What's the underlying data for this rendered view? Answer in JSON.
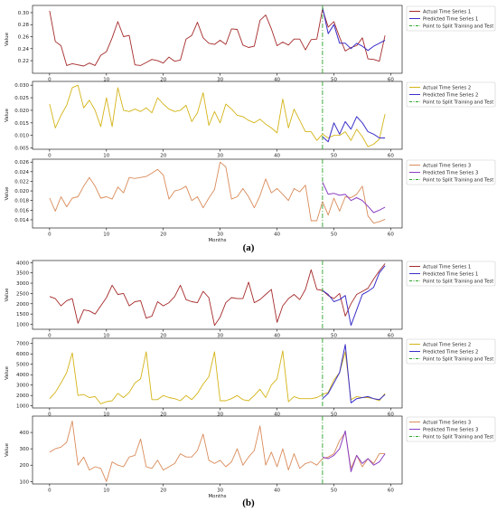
{
  "panels": [
    {
      "label": "(a)"
    },
    {
      "label": "(b)"
    }
  ],
  "chart_data": [
    {
      "type": "line",
      "group": "a",
      "ylabel": "Value",
      "xlabel": "",
      "xlim": [
        -3,
        62
      ],
      "ylim": [
        0.199,
        0.312
      ],
      "yticks": [
        0.22,
        0.24,
        0.26,
        0.28,
        0.3
      ],
      "ytick_labels": [
        "0.22",
        "0.24",
        "0.26",
        "0.28",
        "0.30"
      ],
      "xticks": [
        0,
        10,
        20,
        30,
        40,
        50,
        60
      ],
      "split": 48,
      "legend_position": "outside-right",
      "series": [
        {
          "name": "Actual Time Series 1",
          "color": "#a52a2a",
          "style": "solid",
          "x_start": 0,
          "values": [
            0.303,
            0.252,
            0.245,
            0.212,
            0.215,
            0.213,
            0.211,
            0.216,
            0.212,
            0.229,
            0.235,
            0.258,
            0.285,
            0.26,
            0.262,
            0.213,
            0.212,
            0.217,
            0.222,
            0.22,
            0.216,
            0.226,
            0.219,
            0.221,
            0.256,
            0.262,
            0.284,
            0.258,
            0.249,
            0.247,
            0.254,
            0.247,
            0.273,
            0.272,
            0.246,
            0.242,
            0.244,
            0.287,
            0.296,
            0.273,
            0.245,
            0.251,
            0.246,
            0.256,
            0.256,
            0.238,
            0.255,
            0.256,
            0.306,
            0.276,
            0.285,
            0.259,
            0.236,
            0.242,
            0.245,
            0.258,
            0.223,
            0.222,
            0.219,
            0.262
          ]
        },
        {
          "name": "Predicted Time Series 1",
          "color": "#3a2fc8",
          "style": "solid",
          "x_start": 48,
          "values": [
            0.309,
            0.265,
            0.28,
            0.249,
            0.249,
            0.24,
            0.249,
            0.244,
            0.237,
            0.244,
            0.249,
            0.254
          ]
        },
        {
          "name": "Point to Split Training and Test",
          "color": "#2ca02c",
          "style": "dashdot"
        }
      ]
    },
    {
      "type": "line",
      "group": "a",
      "ylabel": "Value",
      "xlabel": "",
      "xlim": [
        -3,
        62
      ],
      "ylim": [
        0.0045,
        0.0315
      ],
      "yticks": [
        0.005,
        0.01,
        0.015,
        0.02,
        0.025,
        0.03
      ],
      "ytick_labels": [
        "0.005",
        "0.010",
        "0.015",
        "0.020",
        "0.025",
        "0.030"
      ],
      "xticks": [
        0,
        10,
        20,
        30,
        40,
        50,
        60
      ],
      "split": 48,
      "legend_position": "outside-right",
      "series": [
        {
          "name": "Actual Time Series 2",
          "color": "#d4b417",
          "style": "solid",
          "x_start": 0,
          "values": [
            0.0225,
            0.013,
            0.018,
            0.022,
            0.029,
            0.03,
            0.021,
            0.024,
            0.02,
            0.0135,
            0.025,
            0.0135,
            0.029,
            0.02,
            0.0195,
            0.0205,
            0.0195,
            0.021,
            0.019,
            0.025,
            0.0225,
            0.0205,
            0.0195,
            0.02,
            0.022,
            0.0155,
            0.019,
            0.027,
            0.014,
            0.0195,
            0.015,
            0.0225,
            0.0205,
            0.018,
            0.0175,
            0.016,
            0.015,
            0.0165,
            0.0145,
            0.013,
            0.011,
            0.0245,
            0.013,
            0.0205,
            0.016,
            0.0115,
            0.0115,
            0.008,
            0.0105,
            0.009,
            0.01,
            0.01,
            0.0115,
            0.008,
            0.0125,
            0.0095,
            0.0055,
            0.0065,
            0.0085,
            0.0185
          ]
        },
        {
          "name": "Predicted Time Series 2",
          "color": "#3a2fc8",
          "style": "solid",
          "x_start": 48,
          "values": [
            0.0095,
            0.0075,
            0.015,
            0.0105,
            0.0155,
            0.0125,
            0.0175,
            0.015,
            0.0115,
            0.0105,
            0.009,
            0.009
          ]
        },
        {
          "name": "Point to Split Training and Test",
          "color": "#2ca02c",
          "style": "dashdot"
        }
      ]
    },
    {
      "type": "line",
      "group": "a",
      "ylabel": "Value",
      "xlabel": "Months",
      "xlim": [
        -3,
        62
      ],
      "ylim": [
        0.0123,
        0.0266
      ],
      "yticks": [
        0.014,
        0.016,
        0.018,
        0.02,
        0.022,
        0.024,
        0.026
      ],
      "ytick_labels": [
        "0.014",
        "0.016",
        "0.018",
        "0.020",
        "0.022",
        "0.024",
        "0.026"
      ],
      "xticks": [
        0,
        10,
        20,
        30,
        40,
        50,
        60
      ],
      "split": 48,
      "legend_position": "outside-right",
      "series": [
        {
          "name": "Actual Time Series 3",
          "color": "#d98b5a",
          "style": "solid",
          "x_start": 0,
          "values": [
            0.0185,
            0.0158,
            0.0188,
            0.0167,
            0.0185,
            0.0188,
            0.021,
            0.0228,
            0.021,
            0.0185,
            0.0188,
            0.0183,
            0.0208,
            0.0196,
            0.0228,
            0.0226,
            0.0228,
            0.023,
            0.0237,
            0.0245,
            0.0233,
            0.0183,
            0.02,
            0.0203,
            0.021,
            0.018,
            0.0188,
            0.0165,
            0.0185,
            0.0203,
            0.026,
            0.025,
            0.0183,
            0.0188,
            0.0205,
            0.0188,
            0.0165,
            0.019,
            0.0225,
            0.0196,
            0.0205,
            0.0193,
            0.018,
            0.0205,
            0.0198,
            0.0212,
            0.0138,
            0.0138,
            0.0178,
            0.015,
            0.0185,
            0.0158,
            0.0188,
            0.0186,
            0.0193,
            0.021,
            0.0148,
            0.0133,
            0.0136,
            0.0141
          ]
        },
        {
          "name": "Predicted Time Series 3",
          "color": "#8a3fc4",
          "style": "solid",
          "x_start": 48,
          "values": [
            0.0218,
            0.0193,
            0.0195,
            0.0191,
            0.0193,
            0.018,
            0.0186,
            0.018,
            0.0168,
            0.0155,
            0.016,
            0.0166
          ]
        },
        {
          "name": "Point to Split Training and Test",
          "color": "#2ca02c",
          "style": "dashdot"
        }
      ]
    },
    {
      "type": "line",
      "group": "b",
      "ylabel": "Value",
      "xlabel": "",
      "xlim": [
        -3,
        62
      ],
      "ylim": [
        760,
        4100
      ],
      "yticks": [
        1000,
        1500,
        2000,
        2500,
        3000,
        3500,
        4000
      ],
      "ytick_labels": [
        "1000",
        "1500",
        "2000",
        "2500",
        "3000",
        "3500",
        "4000"
      ],
      "xticks": [
        0,
        10,
        20,
        30,
        40,
        50,
        60
      ],
      "split": 48,
      "legend_position": "outside-right",
      "series": [
        {
          "name": "Actual Time Series 1",
          "color": "#a52a2a",
          "style": "solid",
          "x_start": 0,
          "values": [
            2350,
            2250,
            1900,
            2150,
            2250,
            1050,
            1700,
            1650,
            1500,
            1900,
            2300,
            2900,
            2450,
            2500,
            1900,
            2100,
            2150,
            1300,
            1400,
            2100,
            1900,
            2050,
            2350,
            2900,
            2200,
            2100,
            2050,
            2600,
            2300,
            950,
            1350,
            2050,
            2300,
            2250,
            2250,
            3050,
            2050,
            2200,
            2450,
            2700,
            1100,
            1900,
            2250,
            2450,
            2200,
            2700,
            3650,
            2700,
            2650,
            2400,
            2250,
            2500,
            1400,
            2000,
            2450,
            2600,
            2750,
            3200,
            3600,
            3950
          ]
        },
        {
          "name": "Predicted Time Series 1",
          "color": "#3a2fc8",
          "style": "solid",
          "x_start": 48,
          "values": [
            2650,
            2450,
            2100,
            2200,
            2400,
            950,
            1700,
            2450,
            2600,
            2800,
            3500,
            3850
          ]
        },
        {
          "name": "Point to Split Training and Test",
          "color": "#2ca02c",
          "style": "dashdot"
        }
      ]
    },
    {
      "type": "line",
      "group": "b",
      "ylabel": "Value",
      "xlabel": "",
      "xlim": [
        -3,
        62
      ],
      "ylim": [
        800,
        7500
      ],
      "yticks": [
        1000,
        2000,
        3000,
        4000,
        5000,
        6000,
        7000
      ],
      "ytick_labels": [
        "1000",
        "2000",
        "3000",
        "4000",
        "5000",
        "6000",
        "7000"
      ],
      "xticks": [
        0,
        10,
        20,
        30,
        40,
        50,
        60
      ],
      "split": 48,
      "legend_position": "outside-right",
      "series": [
        {
          "name": "Actual Time Series 2",
          "color": "#d4b417",
          "style": "solid",
          "x_start": 0,
          "values": [
            1700,
            2300,
            3200,
            4200,
            6100,
            2000,
            2100,
            1800,
            1900,
            1200,
            1400,
            1500,
            2200,
            1800,
            2300,
            3200,
            3600,
            6200,
            1600,
            1600,
            2000,
            1800,
            1700,
            1500,
            2000,
            1600,
            2200,
            3100,
            3800,
            6200,
            1500,
            1500,
            1700,
            2000,
            1600,
            1500,
            2000,
            2600,
            1800,
            3000,
            3600,
            6300,
            1400,
            1900,
            1700,
            1700,
            1700,
            1800,
            2100,
            2300,
            3500,
            4200,
            6200,
            1600,
            1900,
            1800,
            1800,
            1700,
            1500,
            2200
          ]
        },
        {
          "name": "Predicted Time Series 2",
          "color": "#3a2fc8",
          "style": "solid",
          "x_start": 48,
          "values": [
            1700,
            2200,
            3200,
            4200,
            6900,
            1300,
            1700,
            1800,
            1900,
            1700,
            1600,
            2100
          ]
        },
        {
          "name": "Point to Split Training and Test",
          "color": "#2ca02c",
          "style": "dashdot"
        }
      ]
    },
    {
      "type": "line",
      "group": "b",
      "ylabel": "Value",
      "xlabel": "Months",
      "xlim": [
        -3,
        62
      ],
      "ylim": [
        85,
        500
      ],
      "yticks": [
        100,
        200,
        300,
        400
      ],
      "ytick_labels": [
        "100",
        "200",
        "300",
        "400"
      ],
      "xticks": [
        0,
        10,
        20,
        30,
        40,
        50,
        60
      ],
      "split": 48,
      "legend_position": "outside-right",
      "series": [
        {
          "name": "Actual Time Series 3",
          "color": "#d98b5a",
          "style": "solid",
          "x_start": 0,
          "values": [
            280,
            300,
            310,
            340,
            470,
            200,
            250,
            170,
            190,
            180,
            100,
            220,
            200,
            190,
            250,
            260,
            360,
            190,
            180,
            230,
            170,
            190,
            210,
            270,
            250,
            250,
            290,
            390,
            230,
            210,
            230,
            190,
            220,
            300,
            200,
            250,
            290,
            440,
            200,
            280,
            190,
            300,
            170,
            270,
            180,
            210,
            220,
            200,
            240,
            250,
            270,
            350,
            400,
            180,
            260,
            190,
            240,
            210,
            270,
            270
          ]
        },
        {
          "name": "Predicted Time Series 3",
          "color": "#8a3fc4",
          "style": "solid",
          "x_start": 48,
          "values": [
            250,
            240,
            260,
            300,
            410,
            160,
            260,
            210,
            240,
            200,
            220,
            270
          ]
        },
        {
          "name": "Point to Split Training and Test",
          "color": "#2ca02c",
          "style": "dashdot"
        }
      ]
    }
  ]
}
